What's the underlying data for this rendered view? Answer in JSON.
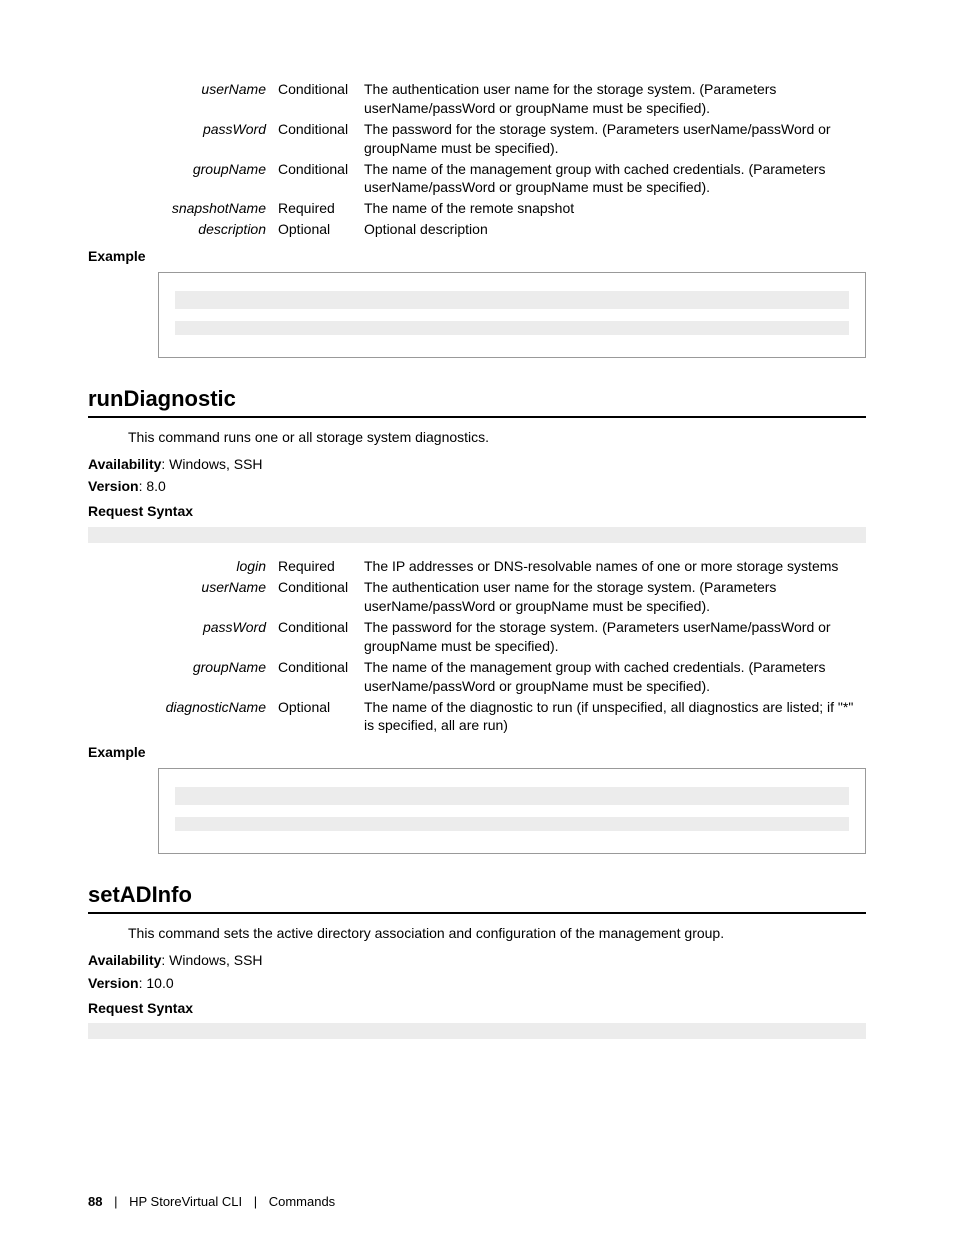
{
  "top_params": [
    {
      "name": "userName",
      "req": "Conditional",
      "desc": "The authentication user name for the storage system. (Parameters userName/passWord or groupName must be specified)."
    },
    {
      "name": "passWord",
      "req": "Conditional",
      "desc": "The password for the storage system. (Parameters userName/passWord or groupName must be specified)."
    },
    {
      "name": "groupName",
      "req": "Conditional",
      "desc": "The name of the management group with cached credentials. (Parameters userName/passWord or groupName must be specified)."
    },
    {
      "name": "snapshotName",
      "req": "Required",
      "desc": "The name of the remote snapshot"
    },
    {
      "name": "description",
      "req": "Optional",
      "desc": "Optional description"
    }
  ],
  "top_example_label": "Example",
  "runDiagnostic": {
    "title": "runDiagnostic",
    "desc": "This command runs one or all storage system diagnostics.",
    "availability_label": "Availability",
    "availability_value": ": Windows, SSH",
    "version_label": "Version",
    "version_value": ": 8.0",
    "syntax_label": "Request Syntax",
    "params": [
      {
        "name": "login",
        "req": "Required",
        "desc": "The IP addresses or DNS-resolvable names of one or more storage systems"
      },
      {
        "name": "userName",
        "req": "Conditional",
        "desc": "The authentication user name for the storage system. (Parameters userName/passWord or groupName must be specified)."
      },
      {
        "name": "passWord",
        "req": "Conditional",
        "desc": "The password for the storage system. (Parameters userName/passWord or groupName must be specified)."
      },
      {
        "name": "groupName",
        "req": "Conditional",
        "desc": "The name of the management group with cached credentials. (Parameters userName/passWord or groupName must be specified)."
      },
      {
        "name": "diagnosticName",
        "req": "Optional",
        "desc": "The name of the diagnostic to run (if unspecified, all diagnostics are listed; if \"*\" is specified, all are run)"
      }
    ],
    "example_label": "Example"
  },
  "setADInfo": {
    "title": "setADInfo",
    "desc": "This command sets the active directory association and configuration of the management group.",
    "availability_label": "Availability",
    "availability_value": ": Windows, SSH",
    "version_label": "Version",
    "version_value": ": 10.0",
    "syntax_label": "Request Syntax"
  },
  "footer": {
    "page": "88",
    "left": "HP StoreVirtual CLI",
    "right": "Commands"
  },
  "colors": {
    "bar": "#ececec",
    "rule": "#000000",
    "border": "#999999"
  }
}
